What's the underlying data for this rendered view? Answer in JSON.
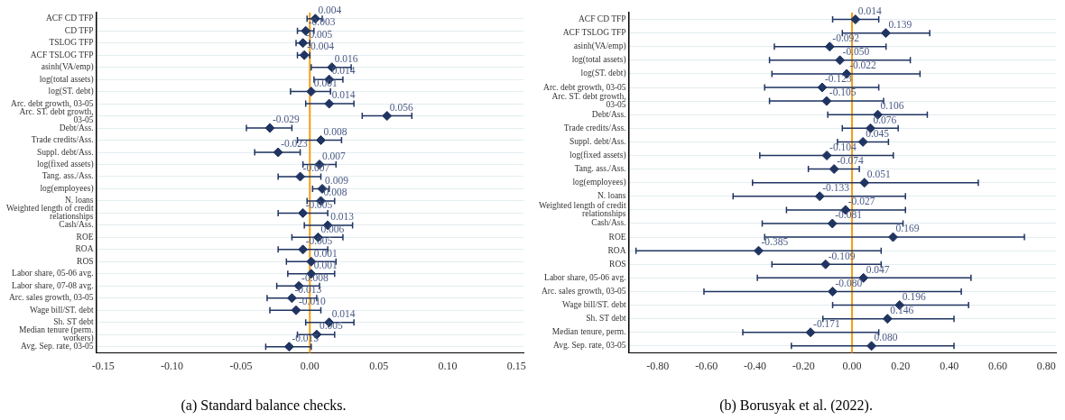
{
  "chart_data": [
    {
      "type": "scatter",
      "orientation": "horizontal",
      "title": "(a) Standard balance checks.",
      "color": "#1f3461",
      "marker": "diamond",
      "grid": "y",
      "legend": false,
      "categories": [
        "ACF CD TFP",
        "CD TFP",
        "TSLOG TFP",
        "ACF TSLOG TFP",
        "asinh(VA/emp)",
        "log(total assets)",
        "log(ST. debt)",
        "Arc. debt growth, 03-05",
        "Arc. ST. debt growth, 03-05",
        "Debt/Ass.",
        "Trade credits/Ass.",
        "Suppl. debt/Ass.",
        "log(fixed assets)",
        "Tang. ass./Ass.",
        "log(employees)",
        "N. loans",
        "Weighted length of credit relationships",
        "Cash/Ass.",
        "ROE",
        "ROA",
        "ROS",
        "Labor share, 05-06 avg.",
        "Labor share, 07-08 avg.",
        "Arc. sales growth, 03-05",
        "Wage bill/ST. debt",
        "Sh. ST debt",
        "Median tenure (perm. workers)",
        "Avg. Sep. rate, 03-05"
      ],
      "values": [
        0.004,
        -0.003,
        -0.005,
        -0.004,
        0.016,
        0.014,
        0.001,
        0.014,
        0.056,
        -0.029,
        0.008,
        -0.023,
        0.007,
        -0.007,
        0.009,
        0.008,
        -0.005,
        0.013,
        0.006,
        -0.005,
        0.001,
        0.001,
        -0.008,
        -0.013,
        -0.01,
        0.014,
        0.005,
        -0.015
      ],
      "value_labels": [
        "0.004",
        "-0.003",
        "-0.005",
        "-0.004",
        "0.016",
        "0.014",
        "0.001",
        "0.014",
        "0.056",
        "-0.029",
        "0.008",
        "-0.023",
        "0.007",
        "-0.007",
        "0.009",
        "0.008",
        "-0.005",
        "0.013",
        "0.006",
        "-0.005",
        "0.001",
        "0.001",
        "-0.008",
        "-0.013",
        "-0.010",
        "0.014",
        "0.005",
        "-0.015"
      ],
      "errors": [
        [
          -0.002,
          0.009
        ],
        [
          -0.009,
          0.003
        ],
        [
          -0.01,
          0.0
        ],
        [
          -0.009,
          0.0
        ],
        [
          0.001,
          0.03
        ],
        [
          0.003,
          0.024
        ],
        [
          -0.014,
          0.015
        ],
        [
          -0.003,
          0.032
        ],
        [
          0.038,
          0.074
        ],
        [
          -0.046,
          -0.013
        ],
        [
          -0.009,
          0.023
        ],
        [
          -0.04,
          -0.007
        ],
        [
          -0.005,
          0.019
        ],
        [
          -0.023,
          0.008
        ],
        [
          0.002,
          0.014
        ],
        [
          -0.002,
          0.018
        ],
        [
          -0.023,
          0.013
        ],
        [
          -0.004,
          0.031
        ],
        [
          -0.013,
          0.024
        ],
        [
          -0.023,
          0.013
        ],
        [
          -0.017,
          0.019
        ],
        [
          -0.016,
          0.018
        ],
        [
          -0.024,
          0.007
        ],
        [
          -0.031,
          0.005
        ],
        [
          -0.029,
          0.008
        ],
        [
          -0.003,
          0.032
        ],
        [
          -0.009,
          0.018
        ],
        [
          -0.032,
          0.001
        ]
      ],
      "xlim": [
        -0.155,
        0.155
      ],
      "xticks": [
        {
          "value": -0.15,
          "label": "-0.15"
        },
        {
          "value": -0.1,
          "label": "-0.10"
        },
        {
          "value": -0.05,
          "label": "-0.05"
        },
        {
          "value": 0,
          "label": "0.00"
        },
        {
          "value": 0.05,
          "label": "0.05"
        },
        {
          "value": 0.1,
          "label": "0.10"
        },
        {
          "value": 0.15,
          "label": "0.15"
        }
      ],
      "ref_lines": [
        {
          "axis": "x",
          "value": 0,
          "color": "#f39c12"
        }
      ]
    },
    {
      "type": "scatter",
      "orientation": "horizontal",
      "title": "(b) Borusyak et al. (2022).",
      "color": "#1f3461",
      "marker": "diamond",
      "grid": "y",
      "legend": false,
      "categories": [
        "ACF CD TFP",
        "ACF TSLOG TFP",
        "asinh(VA/emp)",
        "log(total assets)",
        "log(ST. debt)",
        "Arc. debt growth, 03-05",
        "Arc. ST. debt growth, 03-05",
        "Debt/Ass.",
        "Trade credits/Ass.",
        "Suppl. debt/Ass.",
        "log(fixed assets)",
        "Tang. ass./Ass.",
        "log(employees)",
        "N. loans",
        "Weighted length of credit relationships",
        "Cash/Ass.",
        "ROE",
        "ROA",
        "ROS",
        "Labor share, 05-06 avg.",
        "Arc. sales growth, 03-05",
        "Wage bill/ST. debt",
        "Sh. ST debt",
        "Median tenure, perm.",
        "Avg. Sep. rate, 03-05"
      ],
      "values": [
        0.014,
        0.139,
        -0.092,
        -0.05,
        -0.022,
        -0.123,
        -0.105,
        0.106,
        0.076,
        0.045,
        -0.104,
        -0.074,
        0.051,
        -0.133,
        -0.027,
        -0.081,
        0.169,
        -0.385,
        -0.109,
        0.047,
        -0.08,
        0.196,
        0.146,
        -0.171,
        0.08
      ],
      "value_labels": [
        "0.014",
        "0.139",
        "-0.092",
        "-0.050",
        "-0.022",
        "-0.123",
        "-0.105",
        "0.106",
        "0.076",
        "0.045",
        "-0.104",
        "-0.074",
        "0.051",
        "-0.133",
        "-0.027",
        "-0.081",
        "0.169",
        "-0.385",
        "-0.109",
        "0.047",
        "-0.080",
        "0.196",
        "0.146",
        "-0.171",
        "0.080"
      ],
      "errors": [
        [
          -0.08,
          0.11
        ],
        [
          -0.04,
          0.32
        ],
        [
          -0.32,
          0.14
        ],
        [
          -0.34,
          0.24
        ],
        [
          -0.33,
          0.28
        ],
        [
          -0.36,
          0.11
        ],
        [
          -0.34,
          0.13
        ],
        [
          -0.1,
          0.31
        ],
        [
          -0.04,
          0.19
        ],
        [
          -0.06,
          0.15
        ],
        [
          -0.38,
          0.17
        ],
        [
          -0.18,
          0.03
        ],
        [
          -0.41,
          0.52
        ],
        [
          -0.49,
          0.22
        ],
        [
          -0.27,
          0.22
        ],
        [
          -0.37,
          0.21
        ],
        [
          -0.36,
          0.71
        ],
        [
          -0.89,
          0.12
        ],
        [
          -0.33,
          0.12
        ],
        [
          -0.39,
          0.49
        ],
        [
          -0.61,
          0.45
        ],
        [
          -0.08,
          0.48
        ],
        [
          -0.12,
          0.42
        ],
        [
          -0.45,
          0.11
        ],
        [
          -0.25,
          0.42
        ]
      ],
      "xlim": [
        -0.92,
        0.84
      ],
      "xticks": [
        {
          "value": -0.8,
          "label": "-0.80"
        },
        {
          "value": -0.6,
          "label": "-0.60"
        },
        {
          "value": -0.4,
          "label": "-0.40"
        },
        {
          "value": -0.2,
          "label": "-0.20"
        },
        {
          "value": 0,
          "label": "0.00"
        },
        {
          "value": 0.2,
          "label": "0.20"
        },
        {
          "value": 0.4,
          "label": "0.40"
        },
        {
          "value": 0.6,
          "label": "0.60"
        },
        {
          "value": 0.8,
          "label": "0.80"
        }
      ],
      "ref_lines": [
        {
          "axis": "x",
          "value": 0,
          "color": "#f39c12"
        }
      ]
    }
  ]
}
